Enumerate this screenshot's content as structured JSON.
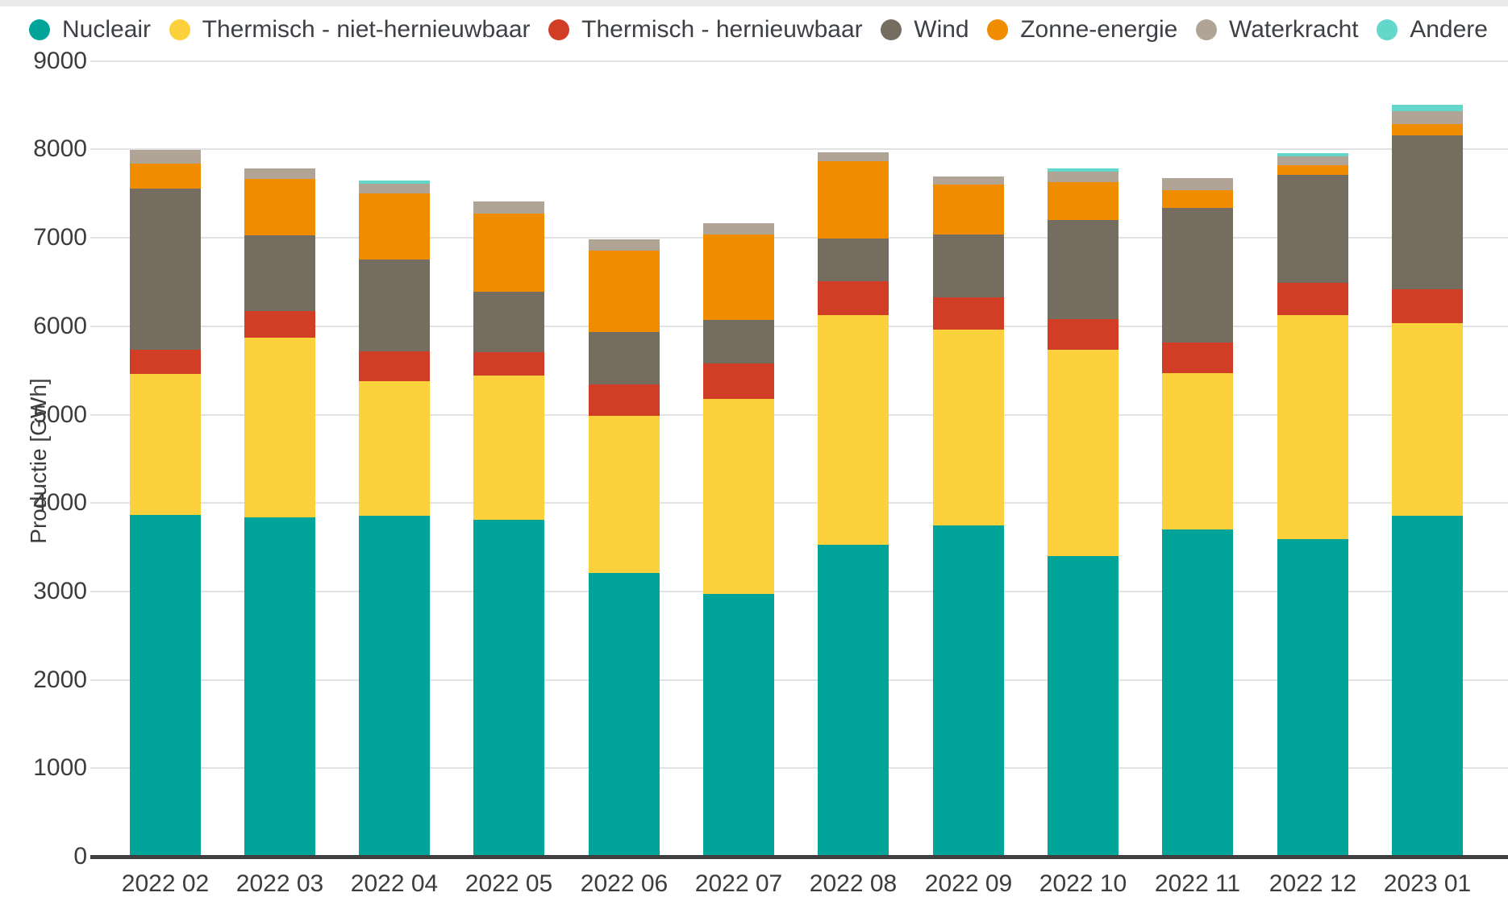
{
  "page": {
    "background": "#ffffff",
    "top_strip_color": "#e9e9e9",
    "gridline_color": "#e2e2e2",
    "axis_line_color": "#3f3f3f",
    "text_color": "#3c3c3c"
  },
  "chart_data": {
    "type": "bar",
    "stacked": true,
    "title": "",
    "xlabel": "",
    "ylabel": "Productie [GWh]",
    "ylim": [
      0,
      9000
    ],
    "y_ticks": [
      0,
      1000,
      2000,
      3000,
      4000,
      5000,
      6000,
      7000,
      8000,
      9000
    ],
    "grid": true,
    "legend_position": "top",
    "categories": [
      "2022 02",
      "2022 03",
      "2022 04",
      "2022 05",
      "2022 06",
      "2022 07",
      "2022 08",
      "2022 09",
      "2022 10",
      "2022 11",
      "2022 12",
      "2023 01"
    ],
    "series": [
      {
        "name": "Nucleair",
        "color": "#00a499",
        "values": [
          3850,
          3820,
          3835,
          3790,
          3190,
          2950,
          3510,
          3730,
          3385,
          3680,
          3570,
          3840
        ]
      },
      {
        "name": "Thermisch - niet-hernieuwbaar",
        "color": "#fcd13b",
        "values": [
          1590,
          2030,
          1525,
          1630,
          1780,
          2210,
          2600,
          2210,
          2335,
          1770,
          2540,
          2180
        ]
      },
      {
        "name": "Thermisch - hernieuwbaar",
        "color": "#d23d26",
        "values": [
          275,
          300,
          340,
          270,
          350,
          400,
          380,
          370,
          340,
          350,
          360,
          380
        ]
      },
      {
        "name": "Wind",
        "color": "#766d61",
        "values": [
          1825,
          860,
          1040,
          680,
          600,
          490,
          480,
          710,
          1120,
          1520,
          1220,
          1740
        ]
      },
      {
        "name": "Zonne-energie",
        "color": "#f08c00",
        "values": [
          285,
          640,
          740,
          890,
          920,
          970,
          880,
          560,
          430,
          200,
          110,
          130
        ]
      },
      {
        "name": "Waterkracht",
        "color": "#afa496",
        "values": [
          150,
          115,
          110,
          130,
          120,
          130,
          100,
          100,
          120,
          140,
          100,
          140
        ]
      },
      {
        "name": "Andere",
        "color": "#62d7ca",
        "values": [
          0,
          0,
          40,
          0,
          0,
          0,
          0,
          0,
          40,
          0,
          40,
          80
        ]
      }
    ],
    "totals": [
      7975,
      7765,
      7630,
      7390,
      6960,
      7150,
      7950,
      7680,
      7770,
      7660,
      7940,
      8490
    ]
  }
}
